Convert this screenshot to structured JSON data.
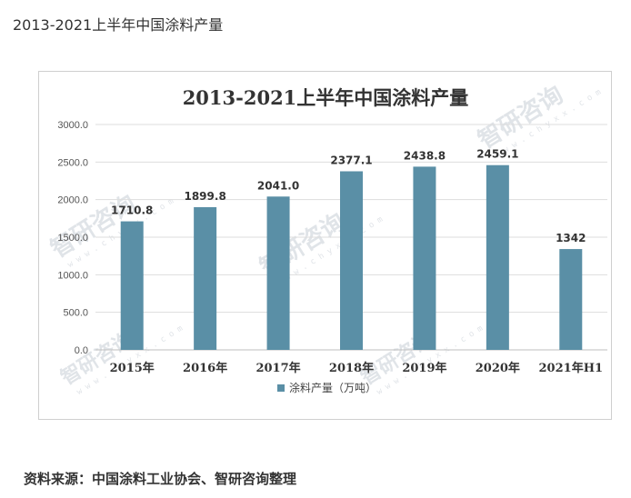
{
  "page_heading": "2013-2021上半年中国涂料产量",
  "source_note": "资料来源：中国涂料工业协会、智研咨询整理",
  "watermark": {
    "main": "智研咨询",
    "sub": "w w w . c h y x x . c o m"
  },
  "colors": {
    "bar": "#5a8fa6",
    "grid": "#dddddd",
    "axis": "#bfbfbf"
  },
  "chart_data": {
    "type": "bar",
    "title": "2013-2021上半年中国涂料产量",
    "categories": [
      "2015年",
      "2016年",
      "2017年",
      "2018年",
      "2019年",
      "2020年",
      "2021年H1"
    ],
    "series": [
      {
        "name": "涂料产量（万吨）",
        "values": [
          1710.8,
          1899.8,
          2041.0,
          2377.1,
          2438.8,
          2459.1,
          1342
        ]
      }
    ],
    "data_labels": [
      "1710.8",
      "1899.8",
      "2041.0",
      "2377.1",
      "2438.8",
      "2459.1",
      "1342"
    ],
    "ylim": [
      0,
      3000
    ],
    "y_ticks": [
      0,
      500,
      1000,
      1500,
      2000,
      2500,
      3000
    ],
    "y_tick_labels": [
      "0.0",
      "500.0",
      "1000.0",
      "1500.0",
      "2000.0",
      "2500.0",
      "3000.0"
    ],
    "grid": true,
    "legend_position": "bottom",
    "xlabel": "",
    "ylabel": ""
  }
}
